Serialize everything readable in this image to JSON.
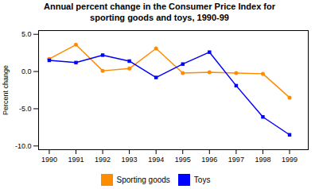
{
  "chart_data": {
    "type": "line",
    "title": "Annual percent change in the Consumer Price Index for\nsporting goods and toys, 1990-99",
    "y_label": "Percent change",
    "x": [
      1990,
      1991,
      1992,
      1993,
      1994,
      1995,
      1996,
      1997,
      1998,
      1999
    ],
    "series": [
      {
        "name": "Sporting goods",
        "color": "#FF8C00",
        "marker": "circle",
        "values": [
          1.7,
          3.6,
          0.1,
          0.4,
          3.1,
          -0.2,
          -0.1,
          -0.2,
          -0.3,
          -3.5
        ]
      },
      {
        "name": "Toys",
        "color": "#0000FF",
        "marker": "square",
        "values": [
          1.5,
          1.2,
          2.2,
          1.4,
          -0.8,
          1.0,
          2.6,
          -1.9,
          -6.1,
          -8.5
        ]
      }
    ],
    "xlim": [
      1989.6,
      1999.7
    ],
    "xticks": [
      1990,
      1991,
      1992,
      1993,
      1994,
      1995,
      1996,
      1997,
      1998,
      1999
    ],
    "ylim": [
      -10.5,
      5.5
    ],
    "yticks": [
      {
        "value": -10.0,
        "label": "-10.0"
      },
      {
        "value": -5.0,
        "label": "-5.0"
      },
      {
        "value": 0.0,
        "label": "0.0"
      },
      {
        "value": 5.0,
        "label": "5.0"
      }
    ],
    "grid": false,
    "legend": "lower center"
  }
}
